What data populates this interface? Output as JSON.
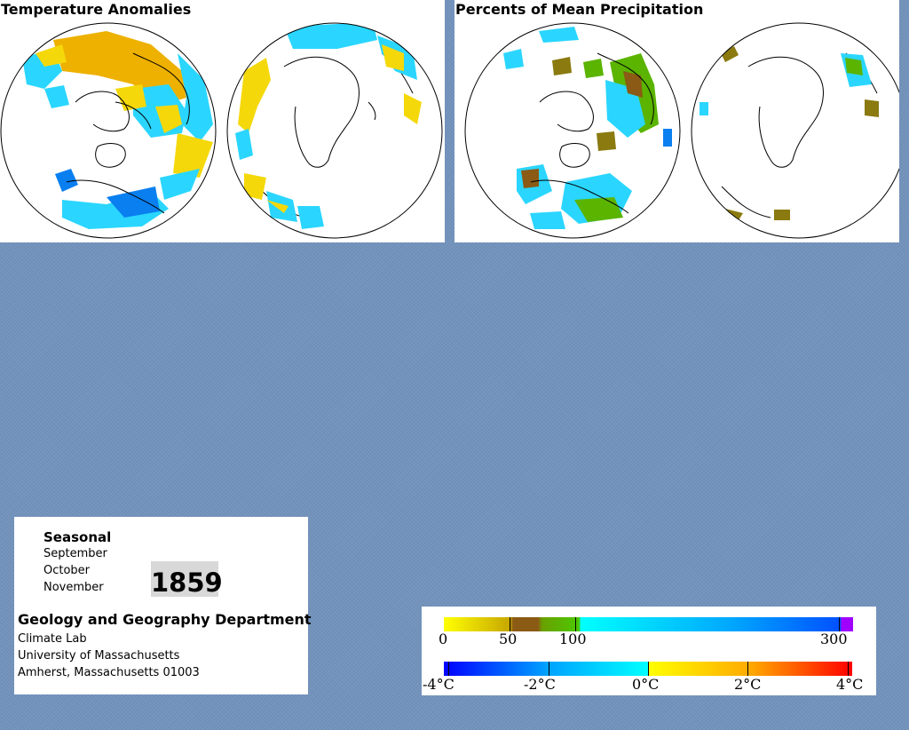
{
  "panels": {
    "temperature": {
      "title": "Temperature Anomalies"
    },
    "precipitation": {
      "title": "Percents of Mean Precipitation"
    }
  },
  "info": {
    "season": "Seasonal",
    "months": [
      "September",
      "October",
      "November"
    ],
    "year": "1859",
    "department": "Geology and Geography Department",
    "address_lines": [
      "Climate Lab",
      "University of Massachusetts",
      "Amherst, Massachusetts 01003"
    ]
  },
  "legend": {
    "precipitation": {
      "ticks": [
        "0",
        "50",
        "100",
        "300"
      ],
      "colors": [
        "#ffff00",
        "#c8a800",
        "#8b5a14",
        "#6aa000",
        "#4cc800",
        "#00ffff",
        "#00a8ff",
        "#0050ff",
        "#a000ff"
      ]
    },
    "temperature": {
      "ticks": [
        "-4°C",
        "-2°C",
        "0°C",
        "2°C",
        "4°C"
      ],
      "colors": [
        "#0000ff",
        "#00a0ff",
        "#00ffff",
        "#ffff00",
        "#ffaa00",
        "#ff3300",
        "#ff0000"
      ]
    }
  },
  "palette": {
    "background": "#7393bd",
    "map_yellow": "#f5d80a",
    "map_orange": "#eeb100",
    "map_cyan": "#2ad6ff",
    "map_blue": "#0a7ff0",
    "map_green": "#5ab400",
    "map_olive": "#8a7a10",
    "map_brown": "#8b5a14"
  }
}
